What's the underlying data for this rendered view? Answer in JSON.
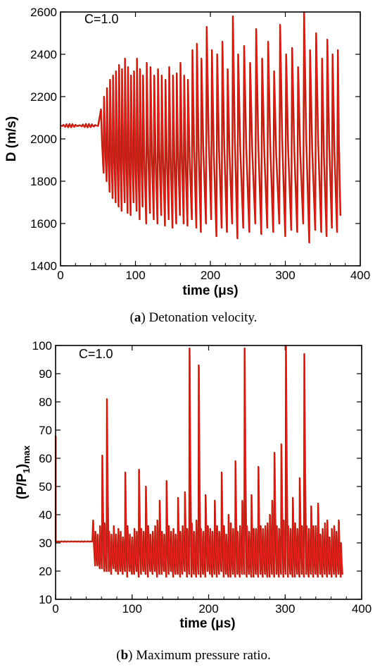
{
  "chart_data": [
    {
      "type": "line",
      "ylabel": "D (m/s)",
      "xlabel": "time (μs)",
      "annotation": "C=1.0",
      "xlim": [
        0,
        400
      ],
      "ylim": [
        1400,
        2600
      ],
      "xticks": [
        "0",
        "100",
        "200",
        "300",
        "400"
      ],
      "yticks": [
        "1400",
        "1600",
        "1800",
        "2000",
        "2200",
        "2400",
        "2600"
      ],
      "series_colors": [
        "#8b2a0e",
        "#ee1c1c"
      ],
      "caption": {
        "letter": "a",
        "text": ") Detonation velocity."
      },
      "base": {
        "x_start": 0,
        "x_transition": 50,
        "value": 2063
      },
      "peaks_x": [
        54,
        58,
        62,
        66,
        70,
        74,
        78,
        82,
        86,
        90,
        94,
        98,
        102,
        106,
        110,
        115,
        120,
        125,
        130,
        135,
        140,
        145,
        150,
        155,
        160,
        165,
        170,
        176,
        182,
        188,
        195,
        202,
        209,
        216,
        223,
        230,
        237,
        245,
        253,
        261,
        269,
        277,
        285,
        293,
        301,
        309,
        317,
        325,
        333,
        341,
        349,
        356,
        363,
        370
      ],
      "peaks_y": [
        2140,
        2200,
        2240,
        2280,
        2300,
        2320,
        2350,
        2330,
        2380,
        2340,
        2300,
        2320,
        2380,
        2330,
        2300,
        2360,
        2340,
        2300,
        2330,
        2300,
        2280,
        2340,
        2300,
        2310,
        2360,
        2300,
        2280,
        2420,
        2450,
        2380,
        2530,
        2420,
        2400,
        2460,
        2330,
        2580,
        2400,
        2440,
        2360,
        2520,
        2380,
        2460,
        2320,
        2540,
        2400,
        2430,
        2340,
        2600,
        2420,
        2500,
        2380,
        2470,
        2400,
        2420
      ],
      "troughs_y": [
        1840,
        1800,
        1750,
        1720,
        1700,
        1680,
        1660,
        1700,
        1650,
        1640,
        1700,
        1660,
        1620,
        1680,
        1600,
        1650,
        1620,
        1600,
        1640,
        1590,
        1620,
        1580,
        1600,
        1640,
        1600,
        1590,
        1620,
        1580,
        1560,
        1600,
        1620,
        1540,
        1580,
        1560,
        1600,
        1530,
        1580,
        1560,
        1600,
        1550,
        1580,
        1560,
        1600,
        1540,
        1570,
        1560,
        1600,
        1510,
        1570,
        1560,
        1540,
        1580,
        1560,
        1640
      ],
      "end_x": 374
    },
    {
      "type": "line",
      "ylabel": "(P/P1)max",
      "ylabel_parts": {
        "a": "(P/P",
        "sub": "1",
        "b": ")",
        "sub2": "max"
      },
      "xlabel": "time (μs)",
      "annotation": "C=1.0",
      "xlim": [
        0,
        400
      ],
      "ylim": [
        10,
        100
      ],
      "xticks": [
        "0",
        "100",
        "200",
        "300",
        "400"
      ],
      "yticks": [
        "10",
        "20",
        "30",
        "40",
        "50",
        "60",
        "70",
        "80",
        "90",
        "100"
      ],
      "series_colors": [
        "#8b2a0e",
        "#ee1c1c"
      ],
      "caption": {
        "letter": "b",
        "text": ") Maximum pressure ratio."
      },
      "initial_spike": 68,
      "base": {
        "x_start": 0,
        "x_transition": 48,
        "value": 30.5
      },
      "peaks_x": [
        49,
        52,
        55,
        58,
        61,
        64,
        67,
        70,
        73,
        76,
        79,
        82,
        85,
        88,
        91,
        94,
        97,
        100,
        103,
        106,
        109,
        112,
        115,
        118,
        121,
        124,
        127,
        130,
        133,
        136,
        139,
        142,
        145,
        148,
        151,
        154,
        157,
        160,
        163,
        166,
        169,
        172,
        175,
        178,
        181,
        184,
        187,
        190,
        193,
        196,
        199,
        202,
        205,
        208,
        211,
        214,
        217,
        220,
        223,
        226,
        229,
        232,
        235,
        238,
        241,
        244,
        247,
        250,
        253,
        256,
        259,
        262,
        265,
        268,
        271,
        274,
        277,
        280,
        283,
        286,
        289,
        292,
        295,
        298,
        301,
        304,
        307,
        310,
        313,
        316,
        319,
        322,
        325,
        328,
        331,
        334,
        337,
        340,
        343,
        346,
        349,
        352,
        355,
        358,
        361,
        364,
        367,
        370,
        373
      ],
      "peaks_y": [
        38,
        34,
        33,
        36,
        61,
        37,
        81,
        34,
        33,
        36,
        33,
        35,
        34,
        32,
        55,
        36,
        33,
        32,
        35,
        34,
        56,
        35,
        34,
        50,
        36,
        33,
        34,
        36,
        38,
        45,
        34,
        33,
        52,
        36,
        34,
        35,
        33,
        46,
        34,
        36,
        48,
        35,
        99,
        37,
        34,
        38,
        93,
        35,
        34,
        47,
        36,
        35,
        34,
        45,
        36,
        34,
        55,
        36,
        33,
        40,
        37,
        35,
        59,
        34,
        36,
        45,
        99,
        36,
        34,
        47,
        35,
        35,
        57,
        36,
        35,
        36,
        37,
        40,
        45,
        62,
        36,
        35,
        65,
        38,
        100,
        36,
        35,
        46,
        37,
        35,
        53,
        36,
        97,
        36,
        35,
        43,
        36,
        36,
        44,
        33,
        35,
        37,
        38,
        32,
        35,
        36,
        34,
        38,
        30
      ],
      "troughs_y": [
        22,
        22,
        21,
        21,
        20,
        20,
        20,
        19,
        21,
        20,
        19,
        20,
        19,
        20,
        18,
        20,
        19,
        19,
        20,
        18,
        19,
        20,
        19,
        18,
        20,
        19,
        20,
        18,
        19,
        19,
        20,
        18,
        19,
        20,
        18,
        19,
        19,
        18,
        19,
        20,
        18,
        19,
        18,
        19,
        18,
        19,
        18,
        19,
        18,
        20,
        19,
        18,
        19,
        18,
        19,
        20,
        18,
        19,
        18,
        18,
        19,
        18,
        19,
        18,
        19,
        19,
        18,
        19,
        18,
        18,
        19,
        18,
        19,
        18,
        19,
        18,
        18,
        19,
        18,
        19,
        18,
        19,
        18,
        19,
        18,
        19,
        18,
        18,
        19,
        18,
        19,
        18,
        19,
        18,
        19,
        18,
        19,
        18,
        19,
        18,
        19,
        18,
        19,
        18,
        19,
        18,
        19,
        18,
        19
      ],
      "end_x": 375
    }
  ]
}
